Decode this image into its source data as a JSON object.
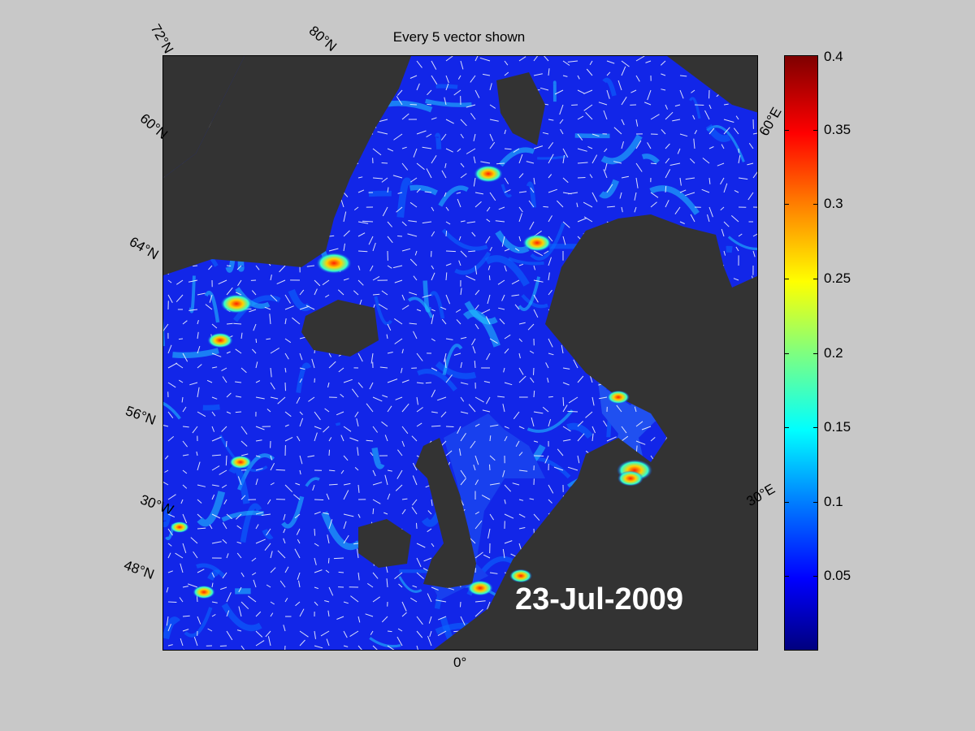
{
  "map": {
    "title": "Every 5 vector shown",
    "date": "23-Jul-2009",
    "latitude_labels": [
      "72",
      "N",
      "80",
      "N",
      "60",
      "N",
      "64",
      "N",
      "56",
      "N",
      "48",
      "N"
    ],
    "lat_label_text": {
      "lat72": "72°N",
      "lat80": "80°N",
      "lat60": "60°N",
      "lat64": "64°N",
      "lat56": "56°N",
      "lat48": "48°N"
    },
    "longitude_labels": {
      "lon30w": "30°W",
      "lon0": "0°",
      "lon30e": "30°E",
      "lon60e": "60°E"
    }
  },
  "colorbar": {
    "ticks": [
      "0.4",
      "0.35",
      "0.3",
      "0.25",
      "0.2",
      "0.15",
      "0.1",
      "0.05"
    ],
    "min": 0,
    "max": 0.4,
    "colormap": "jet"
  },
  "colors": {
    "background": "#c8c8c8",
    "land": "#333333",
    "ocean_low": "#1226e8",
    "text": "#000000",
    "date_text": "#ffffff"
  }
}
